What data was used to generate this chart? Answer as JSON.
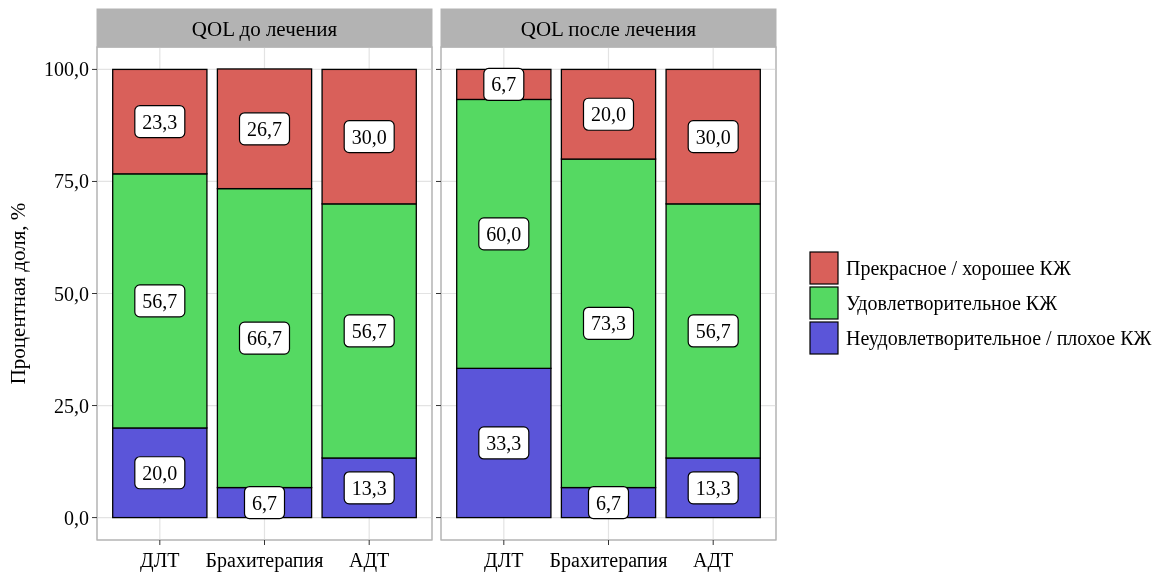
{
  "chart_data": [
    {
      "type": "bar",
      "title": "QOL до лечения",
      "ylabel": "Процентная доля, %",
      "categories": [
        "ДЛТ",
        "Брахитерапия",
        "АДТ"
      ],
      "stacked": true,
      "ylim": [
        -5,
        105
      ],
      "yticks": [
        {
          "value": 0,
          "label": "0,0"
        },
        {
          "value": 25,
          "label": "25,0"
        },
        {
          "value": 50,
          "label": "50,0"
        },
        {
          "value": 75,
          "label": "75,0"
        },
        {
          "value": 100,
          "label": "100,0"
        }
      ],
      "grid": true,
      "series": [
        {
          "color": "#5b55d9",
          "values": [
            20.0,
            6.7,
            13.3
          ],
          "value_labels": [
            "20,0",
            "6,7",
            "13,3"
          ]
        },
        {
          "color": "#55d962",
          "values": [
            56.7,
            66.7,
            56.7
          ],
          "value_labels": [
            "56,7",
            "66,7",
            "56,7"
          ]
        },
        {
          "color": "#d9605a",
          "values": [
            23.3,
            26.7,
            30.0
          ],
          "value_labels": [
            "23,3",
            "26,7",
            "30,0"
          ]
        }
      ]
    },
    {
      "type": "bar",
      "title": "QOL после лечения",
      "categories": [
        "ДЛТ",
        "Брахитерапия",
        "АДТ"
      ],
      "stacked": true,
      "ylim": [
        -5,
        105
      ],
      "yticks": [
        {
          "value": 0,
          "label": null
        },
        {
          "value": 25,
          "label": null
        },
        {
          "value": 50,
          "label": null
        },
        {
          "value": 75,
          "label": null
        },
        {
          "value": 100,
          "label": null
        }
      ],
      "tick_labels": "x",
      "grid": true,
      "legend": "right",
      "series": [
        {
          "name": "Неудовлетворительное / плохое КЖ",
          "color": "#5b55d9",
          "values": [
            33.3,
            6.7,
            13.3
          ],
          "value_labels": [
            "33,3",
            "6,7",
            "13,3"
          ]
        },
        {
          "name": "Удовлетворительное КЖ",
          "color": "#55d962",
          "values": [
            60.0,
            73.3,
            56.7
          ],
          "value_labels": [
            "60,0",
            "73,3",
            "56,7"
          ]
        },
        {
          "name": "Прекрасное / хорошее КЖ",
          "color": "#d9605a",
          "values": [
            6.7,
            20.0,
            30.0
          ],
          "value_labels": [
            "6,7",
            "20,0",
            "30,0"
          ]
        }
      ]
    }
  ]
}
